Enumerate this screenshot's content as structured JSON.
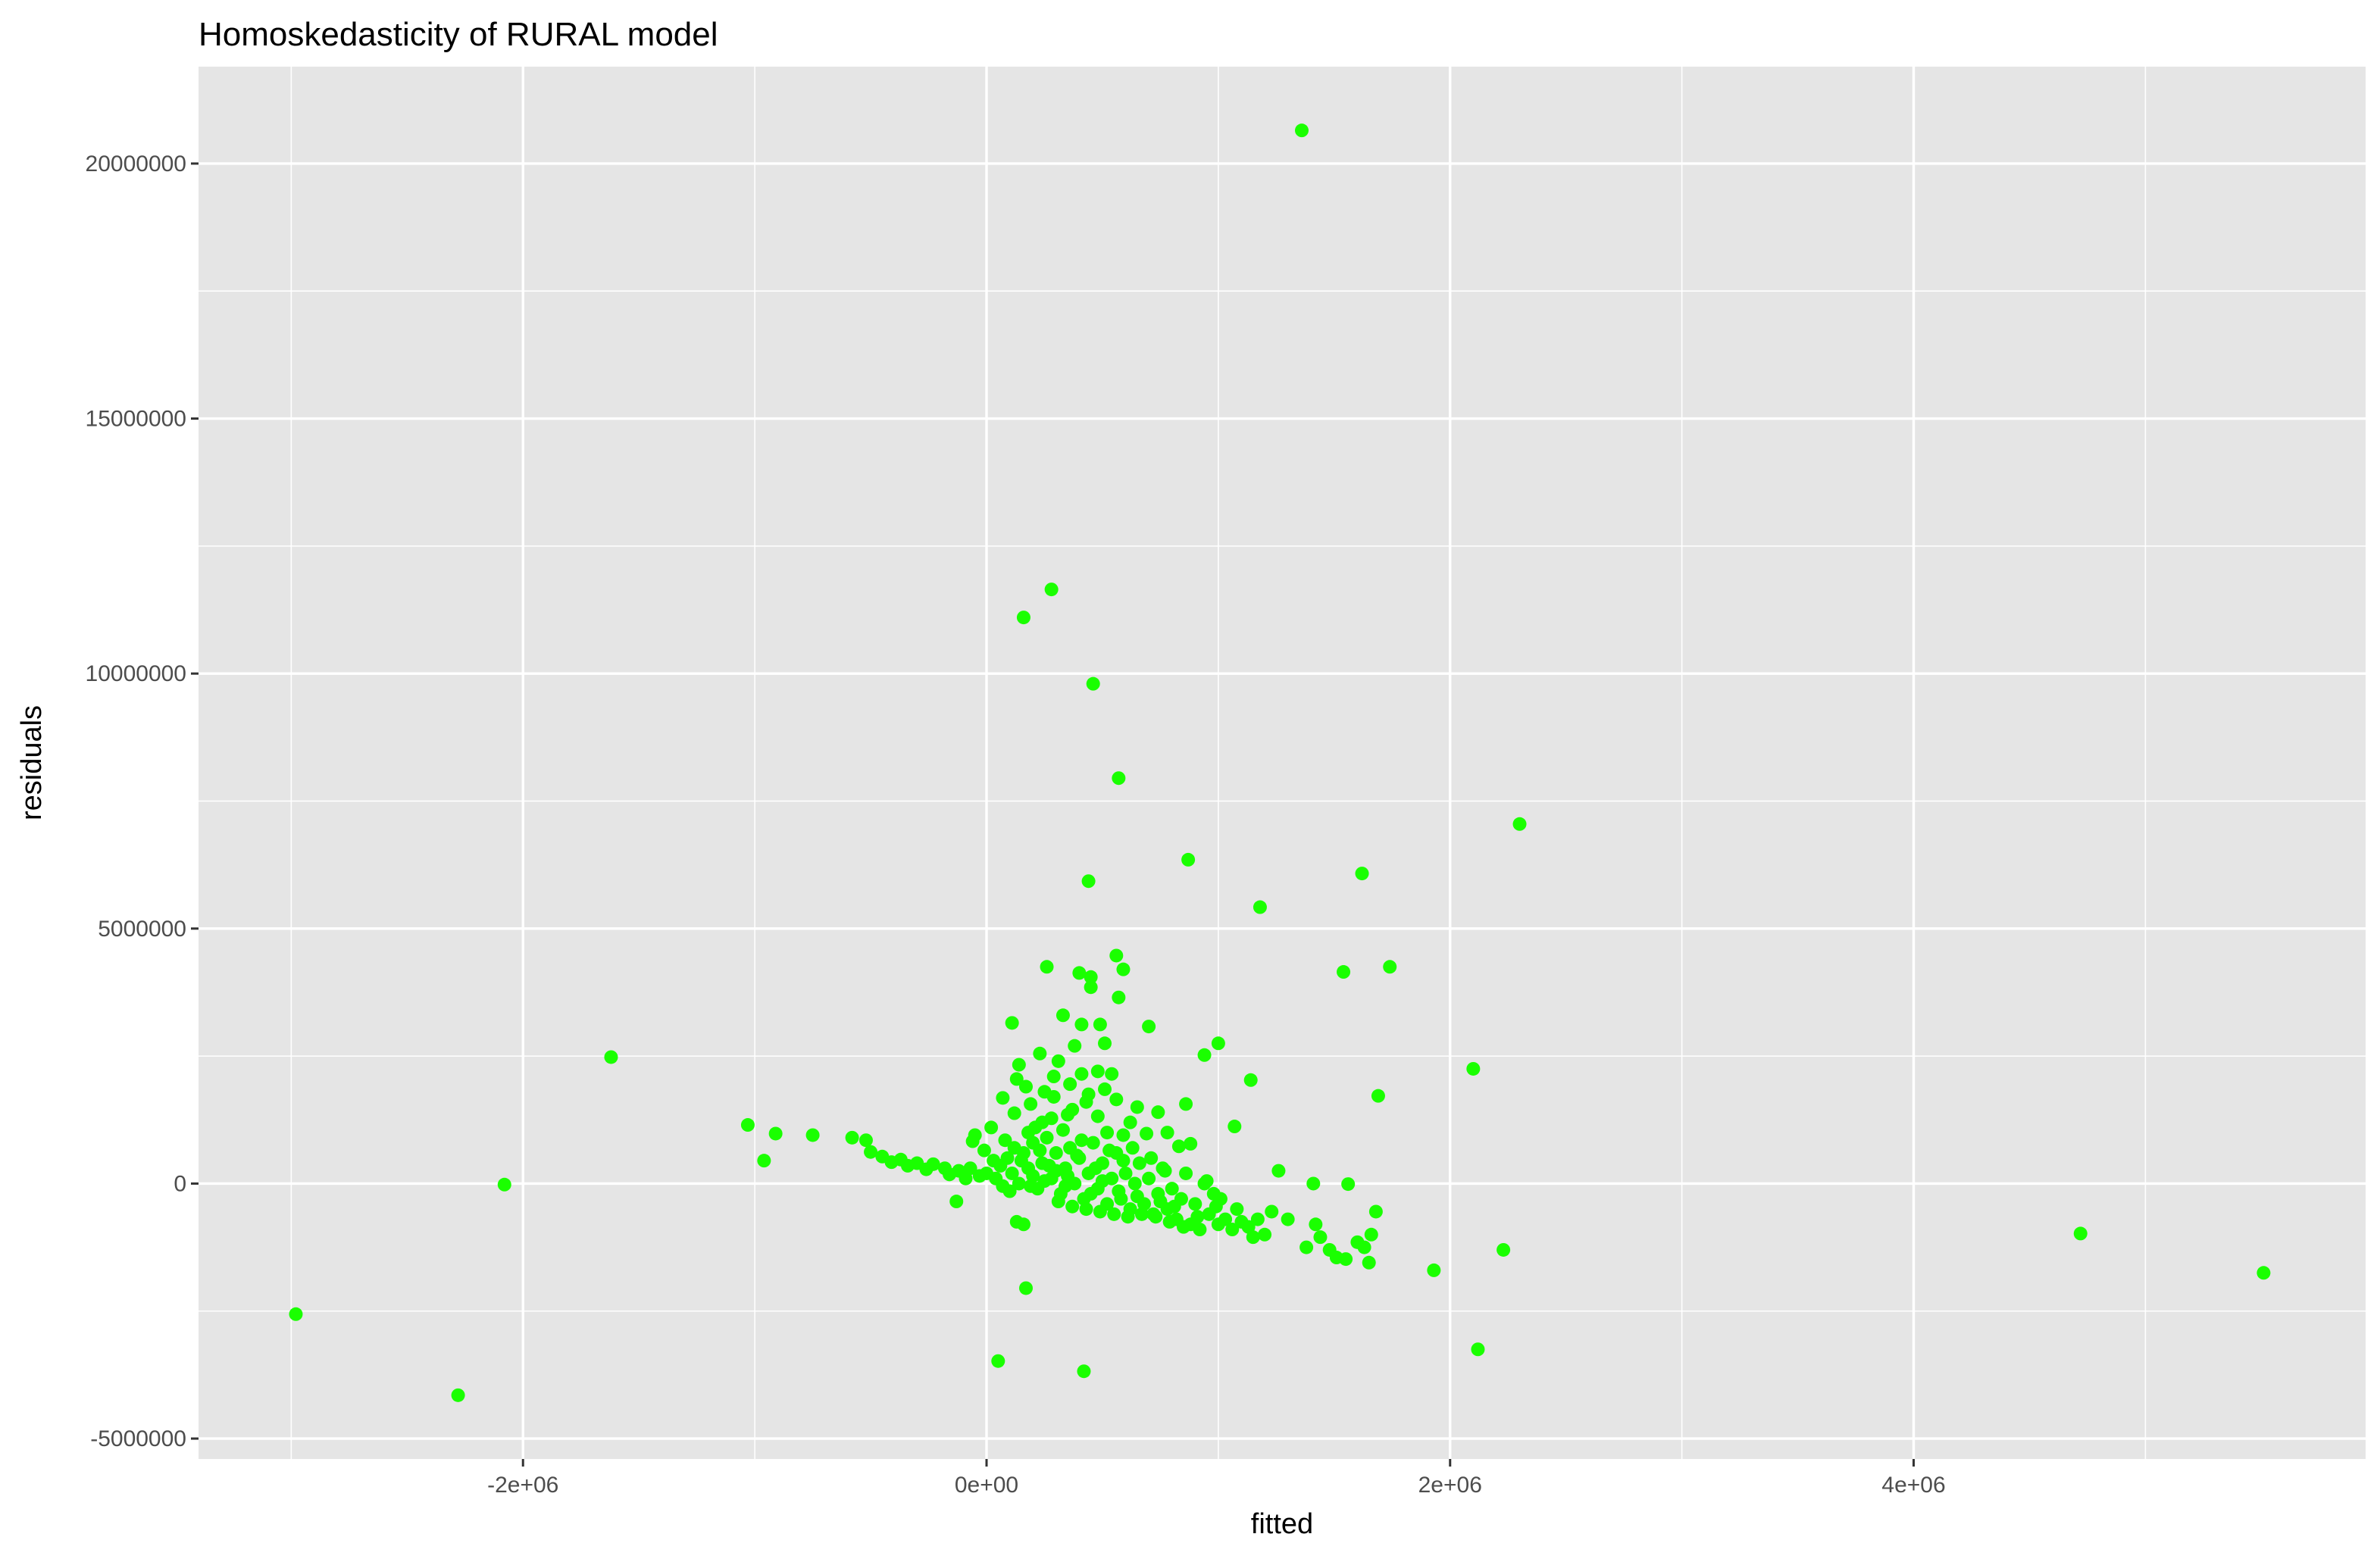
{
  "chart_data": {
    "type": "scatter",
    "title": "Homoskedasticity of RURAL model",
    "xlabel": "fitted",
    "ylabel": "residuals",
    "xlim": [
      -3400000,
      5950000
    ],
    "ylim": [
      -5400000,
      21900000
    ],
    "x_ticks": [
      {
        "value": -2000000,
        "label": "-2e+06"
      },
      {
        "value": 0,
        "label": "0e+00"
      },
      {
        "value": 2000000,
        "label": "2e+06"
      },
      {
        "value": 4000000,
        "label": "4e+06"
      }
    ],
    "y_ticks": [
      {
        "value": -5000000,
        "label": "-5000000"
      },
      {
        "value": 0,
        "label": "0"
      },
      {
        "value": 5000000,
        "label": "5000000"
      },
      {
        "value": 10000000,
        "label": "10000000"
      },
      {
        "value": 15000000,
        "label": "15000000"
      },
      {
        "value": 20000000,
        "label": "20000000"
      }
    ],
    "grid": true,
    "point_color": "#1aff00",
    "panel_color": "#e5e5e5",
    "grid_color": "#ffffff",
    "points": [
      {
        "x": 1360000,
        "y": 20650000
      },
      {
        "x": 280000,
        "y": 11650000
      },
      {
        "x": 160000,
        "y": 11100000
      },
      {
        "x": 460000,
        "y": 9800000
      },
      {
        "x": 570000,
        "y": 7950000
      },
      {
        "x": 2300000,
        "y": 7050000
      },
      {
        "x": 870000,
        "y": 6350000
      },
      {
        "x": 1620000,
        "y": 6080000
      },
      {
        "x": 440000,
        "y": 5930000
      },
      {
        "x": 1180000,
        "y": 5420000
      },
      {
        "x": 560000,
        "y": 4470000
      },
      {
        "x": 260000,
        "y": 4250000
      },
      {
        "x": 1740000,
        "y": 4250000
      },
      {
        "x": 1540000,
        "y": 4150000
      },
      {
        "x": 590000,
        "y": 4200000
      },
      {
        "x": 400000,
        "y": 4130000
      },
      {
        "x": 450000,
        "y": 4050000
      },
      {
        "x": 450000,
        "y": 3850000
      },
      {
        "x": 570000,
        "y": 3650000
      },
      {
        "x": 330000,
        "y": 3300000
      },
      {
        "x": 110000,
        "y": 3150000
      },
      {
        "x": 410000,
        "y": 3120000
      },
      {
        "x": 490000,
        "y": 3120000
      },
      {
        "x": 700000,
        "y": 3080000
      },
      {
        "x": 510000,
        "y": 2750000
      },
      {
        "x": 1000000,
        "y": 2750000
      },
      {
        "x": 380000,
        "y": 2700000
      },
      {
        "x": 230000,
        "y": 2550000
      },
      {
        "x": 940000,
        "y": 2520000
      },
      {
        "x": -1620000,
        "y": 2480000
      },
      {
        "x": 310000,
        "y": 2400000
      },
      {
        "x": 140000,
        "y": 2330000
      },
      {
        "x": 2100000,
        "y": 2250000
      },
      {
        "x": 480000,
        "y": 2200000
      },
      {
        "x": 540000,
        "y": 2150000
      },
      {
        "x": 410000,
        "y": 2150000
      },
      {
        "x": 290000,
        "y": 2100000
      },
      {
        "x": 130000,
        "y": 2050000
      },
      {
        "x": 1140000,
        "y": 2030000
      },
      {
        "x": 360000,
        "y": 1950000
      },
      {
        "x": 170000,
        "y": 1900000
      },
      {
        "x": 510000,
        "y": 1850000
      },
      {
        "x": 250000,
        "y": 1800000
      },
      {
        "x": 440000,
        "y": 1750000
      },
      {
        "x": 1690000,
        "y": 1720000
      },
      {
        "x": 70000,
        "y": 1680000
      },
      {
        "x": 560000,
        "y": 1650000
      },
      {
        "x": 190000,
        "y": 1560000
      },
      {
        "x": 860000,
        "y": 1560000
      },
      {
        "x": 650000,
        "y": 1500000
      },
      {
        "x": 370000,
        "y": 1450000
      },
      {
        "x": 740000,
        "y": 1400000
      },
      {
        "x": 120000,
        "y": 1380000
      },
      {
        "x": 480000,
        "y": 1320000
      },
      {
        "x": 280000,
        "y": 1280000
      },
      {
        "x": -1030000,
        "y": 1150000
      },
      {
        "x": 1070000,
        "y": 1120000
      },
      {
        "x": 20000,
        "y": 1100000
      },
      {
        "x": -910000,
        "y": 980000
      },
      {
        "x": -750000,
        "y": 950000
      },
      {
        "x": -50000,
        "y": 950000
      },
      {
        "x": 590000,
        "y": 950000
      },
      {
        "x": 690000,
        "y": 980000
      },
      {
        "x": -580000,
        "y": 900000
      },
      {
        "x": -520000,
        "y": 850000
      },
      {
        "x": -60000,
        "y": 830000
      },
      {
        "x": 80000,
        "y": 850000
      },
      {
        "x": 880000,
        "y": 780000
      },
      {
        "x": 830000,
        "y": 730000
      },
      {
        "x": -500000,
        "y": 620000
      },
      {
        "x": -450000,
        "y": 530000
      },
      {
        "x": -960000,
        "y": 450000
      },
      {
        "x": -370000,
        "y": 470000
      },
      {
        "x": -300000,
        "y": 400000
      },
      {
        "x": -230000,
        "y": 380000
      },
      {
        "x": -180000,
        "y": 300000
      },
      {
        "x": -120000,
        "y": 250000
      },
      {
        "x": -70000,
        "y": 300000
      },
      {
        "x": -30000,
        "y": 150000
      },
      {
        "x": 0,
        "y": 200000
      },
      {
        "x": 40000,
        "y": 100000
      },
      {
        "x": 60000,
        "y": 350000
      },
      {
        "x": 90000,
        "y": 500000
      },
      {
        "x": 110000,
        "y": 200000
      },
      {
        "x": 140000,
        "y": 0
      },
      {
        "x": 160000,
        "y": 600000
      },
      {
        "x": 180000,
        "y": 300000
      },
      {
        "x": 200000,
        "y": 800000
      },
      {
        "x": 220000,
        "y": -100000
      },
      {
        "x": 240000,
        "y": 400000
      },
      {
        "x": 260000,
        "y": 900000
      },
      {
        "x": 280000,
        "y": 100000
      },
      {
        "x": 300000,
        "y": 600000
      },
      {
        "x": 320000,
        "y": -200000
      },
      {
        "x": 340000,
        "y": 300000
      },
      {
        "x": 360000,
        "y": 700000
      },
      {
        "x": 380000,
        "y": 0
      },
      {
        "x": 400000,
        "y": 500000
      },
      {
        "x": 420000,
        "y": -300000
      },
      {
        "x": 440000,
        "y": 200000
      },
      {
        "x": 460000,
        "y": 800000
      },
      {
        "x": 480000,
        "y": -100000
      },
      {
        "x": 500000,
        "y": 400000
      },
      {
        "x": 520000,
        "y": -400000
      },
      {
        "x": 540000,
        "y": 100000
      },
      {
        "x": 560000,
        "y": 600000
      },
      {
        "x": 580000,
        "y": -300000
      },
      {
        "x": 600000,
        "y": 200000
      },
      {
        "x": 620000,
        "y": -500000
      },
      {
        "x": 640000,
        "y": 0
      },
      {
        "x": 660000,
        "y": 400000
      },
      {
        "x": 680000,
        "y": -400000
      },
      {
        "x": 700000,
        "y": 100000
      },
      {
        "x": 720000,
        "y": -600000
      },
      {
        "x": 740000,
        "y": -200000
      },
      {
        "x": 760000,
        "y": 300000
      },
      {
        "x": 780000,
        "y": -500000
      },
      {
        "x": 800000,
        "y": -100000
      },
      {
        "x": 820000,
        "y": -700000
      },
      {
        "x": 840000,
        "y": -300000
      },
      {
        "x": 860000,
        "y": 200000
      },
      {
        "x": 880000,
        "y": -800000
      },
      {
        "x": 900000,
        "y": -400000
      },
      {
        "x": 920000,
        "y": -900000
      },
      {
        "x": 940000,
        "y": 0
      },
      {
        "x": 960000,
        "y": -600000
      },
      {
        "x": 980000,
        "y": -200000
      },
      {
        "x": 1000000,
        "y": -800000
      },
      {
        "x": 1030000,
        "y": -700000
      },
      {
        "x": 1060000,
        "y": -900000
      },
      {
        "x": 1080000,
        "y": -500000
      },
      {
        "x": 1100000,
        "y": -750000
      },
      {
        "x": 1130000,
        "y": -850000
      },
      {
        "x": 1150000,
        "y": -1050000
      },
      {
        "x": 1170000,
        "y": -700000
      },
      {
        "x": 1200000,
        "y": -1000000
      },
      {
        "x": 1230000,
        "y": -550000
      },
      {
        "x": 1260000,
        "y": 250000
      },
      {
        "x": 1300000,
        "y": -700000
      },
      {
        "x": 1380000,
        "y": -1250000
      },
      {
        "x": 1410000,
        "y": 0
      },
      {
        "x": 1420000,
        "y": -800000
      },
      {
        "x": 1440000,
        "y": -1050000
      },
      {
        "x": 1480000,
        "y": -1300000
      },
      {
        "x": 1510000,
        "y": -1450000
      },
      {
        "x": 1550000,
        "y": -1480000
      },
      {
        "x": 1560000,
        "y": -10000
      },
      {
        "x": 1600000,
        "y": -1150000
      },
      {
        "x": 1630000,
        "y": -1250000
      },
      {
        "x": 1650000,
        "y": -1550000
      },
      {
        "x": 1660000,
        "y": -1000000
      },
      {
        "x": 1680000,
        "y": -550000
      },
      {
        "x": 1930000,
        "y": -1700000
      },
      {
        "x": 2230000,
        "y": -1300000
      },
      {
        "x": 2120000,
        "y": -3250000
      },
      {
        "x": -130000,
        "y": -350000
      },
      {
        "x": 160000,
        "y": -800000
      },
      {
        "x": 130000,
        "y": -750000
      },
      {
        "x": 170000,
        "y": -2050000
      },
      {
        "x": 50000,
        "y": -3480000
      },
      {
        "x": 420000,
        "y": -3680000
      },
      {
        "x": -2080000,
        "y": -20000
      },
      {
        "x": -2280000,
        "y": -4150000
      },
      {
        "x": -2980000,
        "y": -2560000
      },
      {
        "x": 4720000,
        "y": -980000
      },
      {
        "x": 5510000,
        "y": -1750000
      },
      {
        "x": 210000,
        "y": 1100000
      },
      {
        "x": 330000,
        "y": 1050000
      },
      {
        "x": 520000,
        "y": 1000000
      },
      {
        "x": 250000,
        "y": 50000
      },
      {
        "x": 310000,
        "y": -350000
      },
      {
        "x": 370000,
        "y": -450000
      },
      {
        "x": 430000,
        "y": -500000
      },
      {
        "x": 490000,
        "y": -550000
      },
      {
        "x": 550000,
        "y": -600000
      },
      {
        "x": 610000,
        "y": -650000
      },
      {
        "x": 670000,
        "y": -600000
      },
      {
        "x": 730000,
        "y": -650000
      },
      {
        "x": 790000,
        "y": -750000
      },
      {
        "x": 850000,
        "y": -850000
      },
      {
        "x": 150000,
        "y": 450000
      },
      {
        "x": 190000,
        "y": -50000
      },
      {
        "x": 230000,
        "y": 650000
      },
      {
        "x": 270000,
        "y": 350000
      },
      {
        "x": 350000,
        "y": 150000
      },
      {
        "x": 390000,
        "y": 550000
      },
      {
        "x": 410000,
        "y": 850000
      },
      {
        "x": 470000,
        "y": 300000
      },
      {
        "x": 530000,
        "y": 650000
      },
      {
        "x": 590000,
        "y": 450000
      },
      {
        "x": 630000,
        "y": 700000
      },
      {
        "x": 710000,
        "y": 500000
      },
      {
        "x": 770000,
        "y": 250000
      },
      {
        "x": 100000,
        "y": -150000
      },
      {
        "x": 200000,
        "y": 150000
      },
      {
        "x": 300000,
        "y": 250000
      },
      {
        "x": 340000,
        "y": -50000
      },
      {
        "x": 450000,
        "y": -200000
      },
      {
        "x": 500000,
        "y": 50000
      },
      {
        "x": 570000,
        "y": -150000
      },
      {
        "x": 650000,
        "y": -250000
      },
      {
        "x": 750000,
        "y": -350000
      },
      {
        "x": 810000,
        "y": -450000
      },
      {
        "x": 910000,
        "y": -650000
      },
      {
        "x": 990000,
        "y": -450000
      },
      {
        "x": -10000,
        "y": 650000
      },
      {
        "x": 30000,
        "y": 450000
      },
      {
        "x": -90000,
        "y": 100000
      },
      {
        "x": -160000,
        "y": 180000
      },
      {
        "x": -260000,
        "y": 280000
      },
      {
        "x": -340000,
        "y": 350000
      },
      {
        "x": -410000,
        "y": 420000
      },
      {
        "x": 70000,
        "y": -50000
      },
      {
        "x": 120000,
        "y": 700000
      },
      {
        "x": 180000,
        "y": 1000000
      },
      {
        "x": 240000,
        "y": 1200000
      },
      {
        "x": 290000,
        "y": 1700000
      },
      {
        "x": 350000,
        "y": 1350000
      },
      {
        "x": 430000,
        "y": 1600000
      },
      {
        "x": 620000,
        "y": 1200000
      },
      {
        "x": 780000,
        "y": 1000000
      },
      {
        "x": 950000,
        "y": 50000
      },
      {
        "x": 1010000,
        "y": -300000
      }
    ]
  }
}
